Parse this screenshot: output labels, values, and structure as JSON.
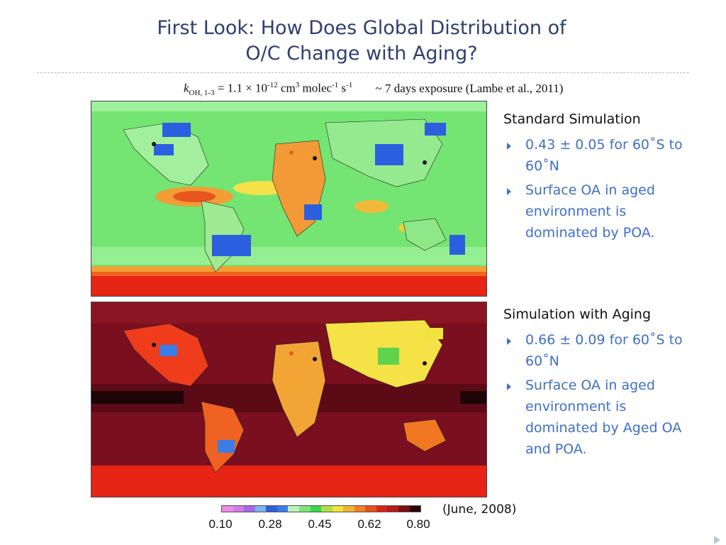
{
  "slide": {
    "title_line1": "First Look: How Does Global Distribution of",
    "title_line2": "O/C Change with Aging?",
    "rate": {
      "symbol": "k",
      "subscript": "OH, 1-3",
      "eq": " = 1.1 × 10",
      "exp1": "-12",
      "unit1": " cm",
      "exp2": "3",
      "unit2": " molec",
      "exp3": "-1",
      "unit3": " s",
      "exp4": "-1",
      "exposure": "~ 7 days exposure (Lambe et al., 2011)"
    }
  },
  "maps": {
    "top_name": "Standard Simulation map",
    "bottom_name": "Simulation with Aging map"
  },
  "standard": {
    "heading": "Standard Simulation",
    "bullets": [
      "0.43 ± 0.05 for 60˚S to 60˚N",
      "Surface OA in aged environment is dominated by POA."
    ]
  },
  "aging": {
    "heading": "Simulation with Aging",
    "bullets": [
      "0.66 ± 0.09 for 60˚S to 60˚N",
      "Surface OA in aged environment is dominated by Aged OA and POA."
    ]
  },
  "colorbar": {
    "colors": [
      "#f08ce8",
      "#d37ae6",
      "#a46ae8",
      "#7bb3ef",
      "#2d5fd8",
      "#3b7ce6",
      "#bff0b8",
      "#7de67a",
      "#38d84a",
      "#b0e046",
      "#f2e33c",
      "#f2b233",
      "#ef8026",
      "#e8501d",
      "#d82418",
      "#b41a18",
      "#7c0e14",
      "#280408"
    ],
    "ticks": [
      "0.10",
      "0.28",
      "0.45",
      "0.62",
      "0.80"
    ]
  },
  "date_note": "(June, 2008)",
  "palette": {
    "title": "#2e3f6e",
    "bullet": "#3e6fc8",
    "ocean_standard": "#7be67b",
    "ocean_aging": "#7a0f1f",
    "land_blue": "#2b5fe0",
    "hotspot_orange": "#e7822b",
    "southern_red": "#e42314"
  }
}
